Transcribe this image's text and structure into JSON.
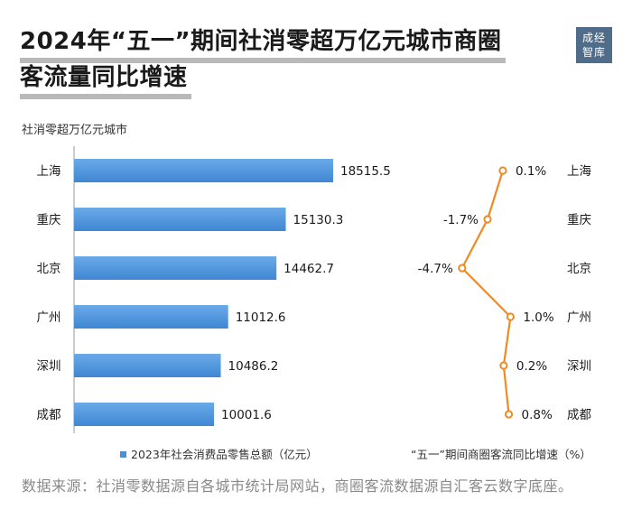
{
  "title_line1": "2024年“五一”期间社消零超万亿元城市商圈",
  "title_line2": "客流量同比增速",
  "logo_line1": "成经",
  "logo_line2": "智库",
  "subtitle": "社消零超万亿元城市",
  "source": "数据来源：社消零数据源自各城市统计局网站，商圈客流数据源自汇客云数字底座。",
  "colors": {
    "bar": "#4a90d9",
    "line": "#f08a24",
    "text": "#1a1a1a"
  },
  "chart_data": [
    {
      "type": "bar",
      "orientation": "horizontal",
      "categories": [
        "上海",
        "重庆",
        "北京",
        "广州",
        "深圳",
        "成都"
      ],
      "series": [
        {
          "name": "2023年社会消费品零售总额（亿元）",
          "values": [
            18515.5,
            15130.3,
            14462.7,
            11012.6,
            10486.2,
            10001.6
          ]
        }
      ],
      "xlim": [
        0,
        20000
      ],
      "grid": false,
      "legend": "bottom"
    },
    {
      "type": "line",
      "orientation": "vertical",
      "categories": [
        "上海",
        "重庆",
        "北京",
        "广州",
        "深圳",
        "成都"
      ],
      "series": [
        {
          "name": "“五一”期间商圈客流同比增速（%）",
          "values": [
            0.1,
            -1.7,
            -4.7,
            1.0,
            0.2,
            0.8
          ],
          "labels": [
            "0.1%",
            "-1.7%",
            "-4.7%",
            "1.0%",
            "0.2%",
            "0.8%"
          ]
        }
      ],
      "grid": false,
      "legend": "bottom"
    }
  ]
}
